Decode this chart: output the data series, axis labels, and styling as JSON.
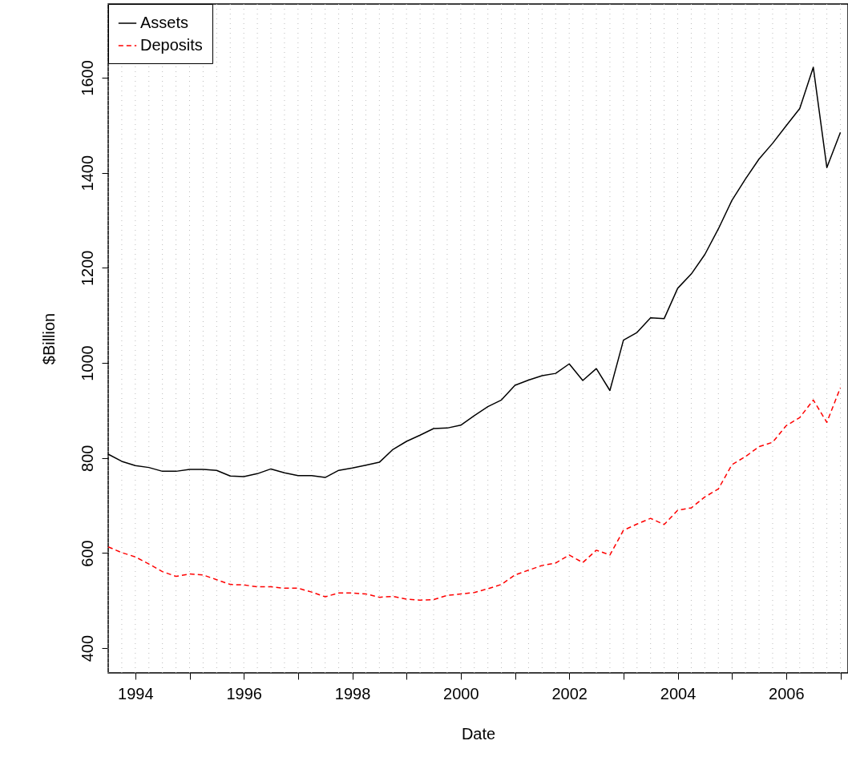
{
  "chart_data": {
    "type": "line",
    "xlabel": "Date",
    "ylabel": "$Billion",
    "x": [
      1993.5,
      1993.75,
      1994,
      1994.25,
      1994.5,
      1994.75,
      1995,
      1995.25,
      1995.5,
      1995.75,
      1996,
      1996.25,
      1996.5,
      1996.75,
      1997,
      1997.25,
      1997.5,
      1997.75,
      1998,
      1998.25,
      1998.5,
      1998.75,
      1999,
      1999.25,
      1999.5,
      1999.75,
      2000,
      2000.25,
      2000.5,
      2000.75,
      2001,
      2001.25,
      2001.5,
      2001.75,
      2002,
      2002.25,
      2002.5,
      2002.75,
      2003,
      2003.25,
      2003.5,
      2003.75,
      2004,
      2004.25,
      2004.5,
      2004.75,
      2005,
      2005.25,
      2005.5,
      2005.75,
      2006,
      2006.25,
      2006.5,
      2006.75,
      2007
    ],
    "series": [
      {
        "name": "Assets",
        "color": "#000000",
        "line_style": "solid",
        "values": [
          808,
          793,
          784,
          780,
          772,
          772,
          776,
          776,
          774,
          762,
          761,
          767,
          777,
          769,
          763,
          763,
          759,
          774,
          779,
          785,
          791,
          818,
          835,
          848,
          862,
          863,
          869,
          889,
          908,
          922,
          953,
          964,
          973,
          978,
          998,
          963,
          988,
          942,
          1048,
          1064,
          1095,
          1093,
          1157,
          1187,
          1228,
          1282,
          1342,
          1387,
          1429,
          1462,
          1499,
          1535,
          1622,
          1411,
          1485
        ]
      },
      {
        "name": "Deposits",
        "color": "#ff0000",
        "line_style": "dashed",
        "values": [
          613,
          601,
          592,
          577,
          561,
          551,
          556,
          554,
          544,
          534,
          533,
          529,
          529,
          526,
          526,
          518,
          508,
          516,
          516,
          514,
          507,
          509,
          503,
          501,
          502,
          511,
          514,
          517,
          525,
          534,
          554,
          564,
          574,
          579,
          596,
          580,
          606,
          596,
          648,
          661,
          673,
          660,
          690,
          695,
          718,
          735,
          786,
          803,
          824,
          833,
          868,
          885,
          922,
          875,
          948
        ]
      }
    ],
    "xlim": [
      1993.5,
      2007.14
    ],
    "ylim": [
      348,
      1755
    ],
    "xticks": [
      1994,
      {
        "value": 1995,
        "label": null
      },
      1996,
      {
        "value": 1997,
        "label": null
      },
      1998,
      {
        "value": 1999,
        "label": null
      },
      2000,
      {
        "value": 2001,
        "label": null
      },
      2002,
      {
        "value": 2003,
        "label": null
      },
      2004,
      {
        "value": 2005,
        "label": null
      },
      2006,
      {
        "value": 2007,
        "label": null
      }
    ],
    "yticks": [
      400,
      600,
      800,
      1000,
      1200,
      1400,
      1600
    ],
    "grid": "x",
    "legend": "top left",
    "marker": "none"
  }
}
